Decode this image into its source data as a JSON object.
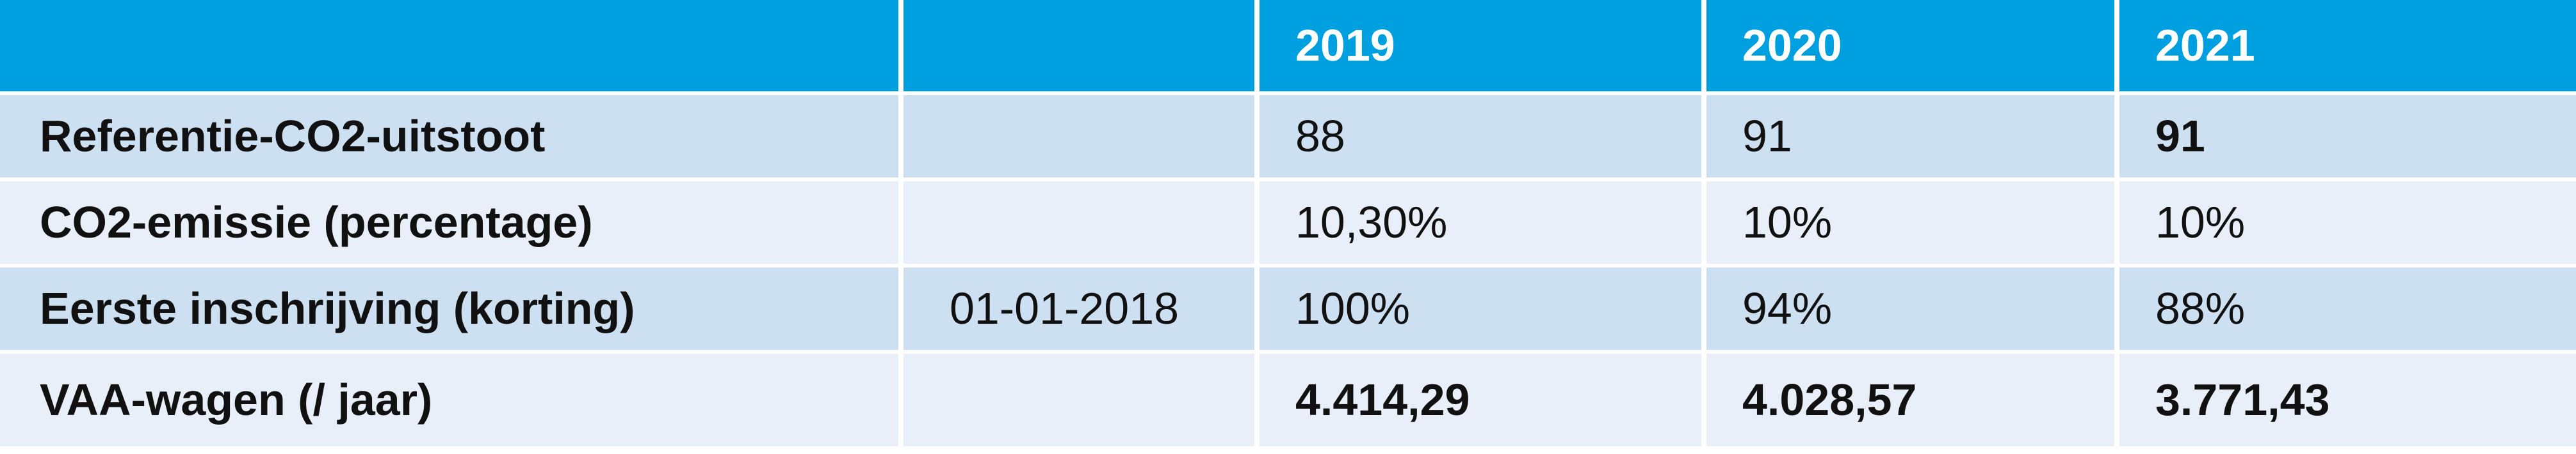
{
  "header": {
    "col0": "",
    "col1": "",
    "year1": "2019",
    "year2": "2020",
    "year3": "2021"
  },
  "rows": [
    {
      "label": "Referentie-CO2-uitstoot",
      "date": "",
      "v2019": "88",
      "v2020": "91",
      "v2021": "91"
    },
    {
      "label": "CO2-emissie (percentage)",
      "date": "",
      "v2019": "10,30%",
      "v2020": "10%",
      "v2021": "10%"
    },
    {
      "label": "Eerste inschrijving (korting)",
      "date": "01-01-2018",
      "v2019": "100%",
      "v2020": "94%",
      "v2021": "88%"
    },
    {
      "label": "VAA-wagen (/ jaar)",
      "date": "",
      "v2019": "4.414,29",
      "v2020": "4.028,57",
      "v2021": "3.771,43"
    }
  ],
  "colors": {
    "header_bg": "#009fdf",
    "row_dark_bg": "#cde0f2",
    "row_light_bg": "#e8eff9"
  }
}
